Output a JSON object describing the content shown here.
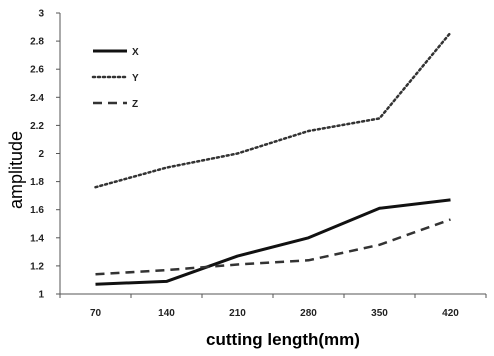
{
  "chart_data": {
    "type": "line",
    "title": "",
    "xlabel": "cutting length(mm)",
    "ylabel": "amplitude",
    "categories": [
      "70",
      "140",
      "210",
      "280",
      "350",
      "420"
    ],
    "ylim": [
      1,
      3
    ],
    "yticks": [
      "1",
      "1.2",
      "1.4",
      "1.6",
      "1.8",
      "2",
      "2.2",
      "2.4",
      "2.6",
      "2.8",
      "3"
    ],
    "grid": false,
    "legend_position": "top-left",
    "series": [
      {
        "name": "X",
        "values": [
          1.07,
          1.09,
          1.27,
          1.4,
          1.61,
          1.67
        ],
        "color": "#111111",
        "style": "solid"
      },
      {
        "name": "Y",
        "values": [
          1.76,
          1.9,
          2.0,
          2.16,
          2.25,
          2.86
        ],
        "color": "#333333",
        "style": "dotted"
      },
      {
        "name": "Z",
        "values": [
          1.14,
          1.17,
          1.21,
          1.24,
          1.35,
          1.53
        ],
        "color": "#333333",
        "style": "dashed"
      }
    ]
  }
}
